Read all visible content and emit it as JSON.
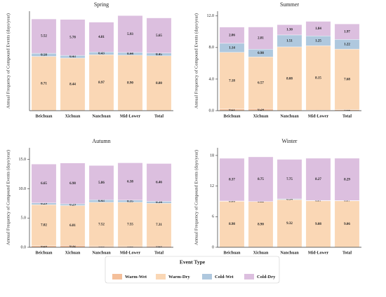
{
  "chart_data": [
    {
      "type": "stacked-bar",
      "title": "Spring",
      "ylabel": "Annual Frequency of Compound Events (days/year)",
      "categories": [
        "Beichuan",
        "Xichuan",
        "Nanchuan",
        "Mid-Lower",
        "Total"
      ],
      "ylim": [
        0,
        16
      ],
      "yticks": [],
      "series": [
        {
          "name": "Warm-Wet",
          "color": "#f4bf9a",
          "values": [
            0.02,
            0.02,
            0.03,
            0.02,
            0.02
          ],
          "value_labels": [
            "0.02",
            null,
            "0.03",
            "0.02",
            "0.02"
          ]
        },
        {
          "name": "Warm-Dry",
          "color": "#fad7b5",
          "values": [
            8.71,
            8.44,
            8.97,
            8.9,
            8.8
          ],
          "value_labels": [
            "8.71",
            "8.44",
            "8.97",
            "8.90",
            "8.80"
          ]
        },
        {
          "name": "Cold-Wet",
          "color": "#afc8de",
          "values": [
            0.5,
            0.43,
            0.43,
            0.44,
            0.45
          ],
          "value_labels": [
            "0.50",
            "0.43",
            "0.43",
            "0.44",
            "0.45"
          ]
        },
        {
          "name": "Cold-Dry",
          "color": "#dcbfdf",
          "values": [
            5.52,
            5.78,
            4.81,
            5.93,
            5.65
          ],
          "value_labels": [
            "5.52",
            "5.78",
            "4.81",
            "5.93",
            "5.65"
          ]
        }
      ]
    },
    {
      "type": "stacked-bar",
      "title": "Summer",
      "ylabel": "Annual Frequency of Compound Events (days/year)",
      "categories": [
        "Beichuan",
        "Xichuan",
        "Nanchuan",
        "Mid-Lower",
        "Total"
      ],
      "ylim": [
        0,
        12.6
      ],
      "yticks": [
        {
          "value": 0,
          "label": "0.0"
        },
        {
          "value": 4,
          "label": "4.0"
        },
        {
          "value": 8,
          "label": "8.0"
        },
        {
          "value": 12,
          "label": "12.0"
        }
      ],
      "series": [
        {
          "name": "Warm-Wet",
          "color": "#f4bf9a",
          "values": [
            0.21,
            0.24,
            0,
            0.07,
            0.12
          ],
          "value_labels": [
            "0.21",
            "0.24",
            null,
            "0.07",
            "0.12"
          ]
        },
        {
          "name": "Warm-Dry",
          "color": "#fad7b5",
          "values": [
            7.18,
            6.57,
            8.08,
            8.15,
            7.68
          ],
          "value_labels": [
            "7.18",
            "6.57",
            "8.08",
            "8.15",
            "7.68"
          ]
        },
        {
          "name": "Cold-Wet",
          "color": "#afc8de",
          "values": [
            1.14,
            0.98,
            1.51,
            1.25,
            1.22
          ],
          "value_labels": [
            "1.14",
            "0.98",
            "1.51",
            "1.25",
            "1.22"
          ]
        },
        {
          "name": "Cold-Dry",
          "color": "#dcbfdf",
          "values": [
            2.06,
            2.81,
            1.3,
            1.84,
            1.97
          ],
          "value_labels": [
            "2.06",
            "2.81",
            "1.30",
            "1.84",
            "1.97"
          ]
        }
      ]
    },
    {
      "type": "stacked-bar",
      "title": "Autumn",
      "ylabel": "Annual Frequency of Compound Events (days/year)",
      "categories": [
        "Beichuan",
        "Xichuan",
        "Nanchuan",
        "Mid-Lower",
        "Total"
      ],
      "ylim": [
        0,
        17
      ],
      "yticks": [
        {
          "value": 0,
          "label": "0.0"
        },
        {
          "value": 5,
          "label": "5.0"
        },
        {
          "value": 10,
          "label": "10.0"
        },
        {
          "value": 15,
          "label": "15.0"
        }
      ],
      "series": [
        {
          "name": "Warm-Wet",
          "color": "#f4bf9a",
          "values": [
            0.26,
            0.32,
            0.16,
            0.15,
            0.2
          ],
          "value_labels": [
            "0.26",
            "0.32",
            "0.16",
            "0.15",
            "0.20"
          ]
        },
        {
          "name": "Warm-Dry",
          "color": "#fad7b5",
          "values": [
            7.02,
            6.81,
            7.52,
            7.55,
            7.31
          ],
          "value_labels": [
            "7.02",
            "6.81",
            "7.52",
            "7.55",
            "7.31"
          ]
        },
        {
          "name": "Cold-Wet",
          "color": "#afc8de",
          "values": [
            0.29,
            0.29,
            0.43,
            0.35,
            0.34
          ],
          "value_labels": [
            "0.29",
            "0.29",
            "0.43",
            "0.35",
            "0.34"
          ]
        },
        {
          "name": "Cold-Dry",
          "color": "#dcbfdf",
          "values": [
            6.65,
            6.98,
            5.86,
            6.38,
            6.46
          ],
          "value_labels": [
            "6.65",
            "6.98",
            "5.86",
            "6.38",
            "6.46"
          ]
        }
      ]
    },
    {
      "type": "stacked-bar",
      "title": "Winter",
      "ylabel": "Annual Frequency of Compound Events (days/year)",
      "categories": [
        "Beichuan",
        "Xichuan",
        "Nanchuan",
        "Mid-Lower",
        "Total"
      ],
      "ylim": [
        0,
        19.5
      ],
      "yticks": [
        0,
        6,
        12,
        18
      ],
      "series": [
        {
          "name": "Warm-Wet",
          "color": "#f4bf9a",
          "values": [
            0.03,
            0.05,
            0.02,
            0.03,
            0.03
          ],
          "value_labels": [
            "0.03",
            "0.05",
            "0.02",
            "0.03",
            "0.03"
          ]
        },
        {
          "name": "Warm-Dry",
          "color": "#fad7b5",
          "values": [
            8.98,
            8.9,
            9.32,
            9.08,
            9.06
          ],
          "value_labels": [
            "8.98",
            "8.90",
            "9.32",
            "9.08",
            "9.06"
          ]
        },
        {
          "name": "Cold-Wet",
          "color": "#afc8de",
          "values": [
            0.06,
            0.02,
            0.14,
            0.07,
            0.07
          ],
          "value_labels": [
            "0.06",
            "0.02",
            "0.14",
            "0.07",
            "0.07"
          ]
        },
        {
          "name": "Cold-Dry",
          "color": "#dcbfdf",
          "values": [
            8.37,
            8.75,
            7.75,
            8.27,
            8.29
          ],
          "value_labels": [
            "8.37",
            "8.75",
            "7.75",
            "8.27",
            "8.29"
          ]
        }
      ]
    }
  ],
  "legend_title": "Event Type"
}
